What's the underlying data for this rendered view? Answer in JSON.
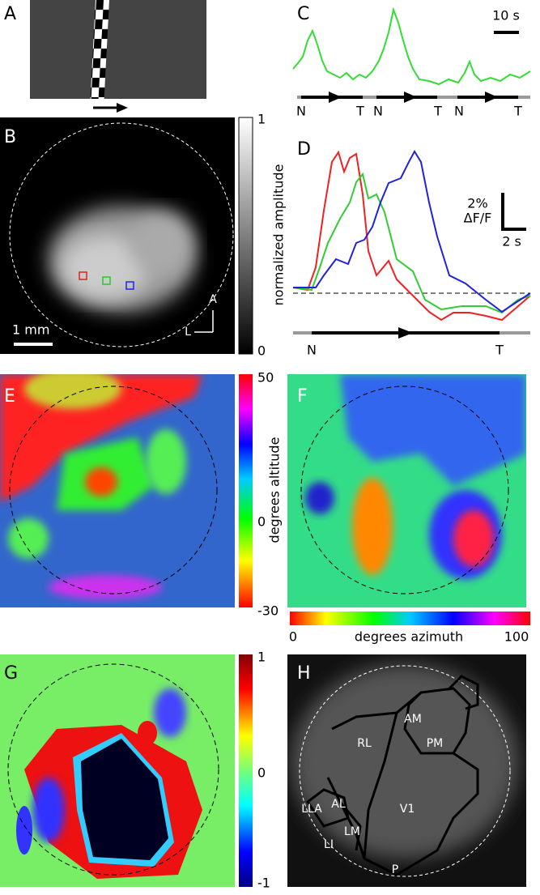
{
  "panels": {
    "a": {
      "label": "A"
    },
    "b": {
      "label": "B",
      "colorbar_title": "normalized amplitude",
      "colorbar_ticks": [
        "1",
        "0"
      ],
      "scale_bar": "1 mm",
      "orientation": [
        "A",
        "L"
      ]
    },
    "c": {
      "label": "C",
      "scale_bar": "10 s",
      "timeline": [
        "N",
        "T",
        "N",
        "T",
        "N",
        "T"
      ]
    },
    "d": {
      "label": "D",
      "scale_y": [
        "2%",
        "ΔF/F"
      ],
      "scale_x": "2 s",
      "timeline": [
        "N",
        "T"
      ]
    },
    "e": {
      "label": "E",
      "colorbar_title": "degrees altitude",
      "colorbar_ticks": [
        "50",
        "0",
        "-30"
      ]
    },
    "f": {
      "label": "F",
      "colorbar_title": "degrees azimuth",
      "colorbar_ticks": [
        "0",
        "100"
      ]
    },
    "g": {
      "label": "G",
      "colorbar_ticks": [
        "1",
        "0",
        "-1"
      ]
    },
    "h": {
      "label": "H",
      "areas": [
        "AM",
        "PM",
        "RL",
        "V1",
        "LLA",
        "AL",
        "LI",
        "LM",
        "P"
      ]
    }
  }
}
